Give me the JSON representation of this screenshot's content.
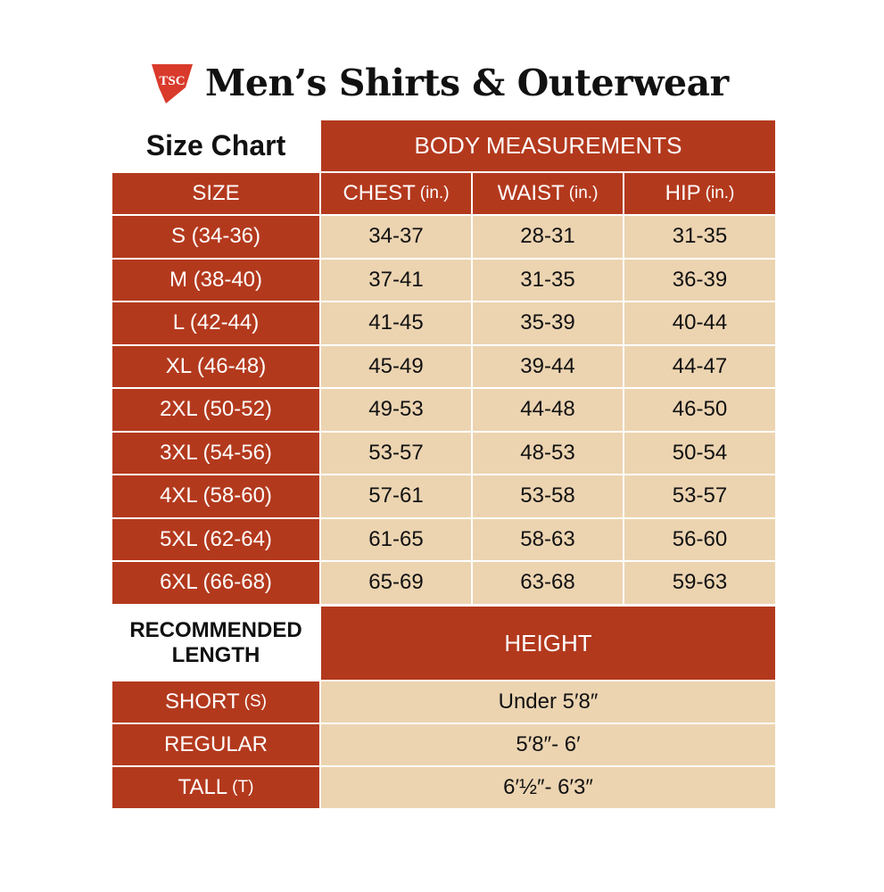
{
  "logo": {
    "text": "TSC",
    "color": "#d93a2b"
  },
  "title": "Men’s Shirts & Outerwear",
  "colors": {
    "header_red": "#b3391d",
    "cell_beige": "#ecd4b1"
  },
  "size_chart": {
    "label": "Size Chart",
    "group_header": "BODY MEASUREMENTS",
    "columns": [
      {
        "label": "SIZE",
        "unit": ""
      },
      {
        "label": "CHEST",
        "unit": "(in.)"
      },
      {
        "label": "WAIST",
        "unit": "(in.)"
      },
      {
        "label": "HIP",
        "unit": "(in.)"
      }
    ],
    "rows": [
      [
        "S (34-36)",
        "34-37",
        "28-31",
        "31-35"
      ],
      [
        "M (38-40)",
        "37-41",
        "31-35",
        "36-39"
      ],
      [
        "L (42-44)",
        "41-45",
        "35-39",
        "40-44"
      ],
      [
        "XL (46-48)",
        "45-49",
        "39-44",
        "44-47"
      ],
      [
        "2XL (50-52)",
        "49-53",
        "44-48",
        "46-50"
      ],
      [
        "3XL (54-56)",
        "53-57",
        "48-53",
        "50-54"
      ],
      [
        "4XL (58-60)",
        "57-61",
        "53-58",
        "53-57"
      ],
      [
        "5XL (62-64)",
        "61-65",
        "58-63",
        "56-60"
      ],
      [
        "6XL (66-68)",
        "65-69",
        "63-68",
        "59-63"
      ]
    ]
  },
  "length_chart": {
    "label_line1": "RECOMMENDED",
    "label_line2": "LENGTH",
    "header": "HEIGHT",
    "rows": [
      {
        "label": "SHORT",
        "code": "(S)",
        "height": "Under 5′8″"
      },
      {
        "label": "REGULAR",
        "code": "",
        "height": "5′8″- 6′"
      },
      {
        "label": "TALL",
        "code": "(T)",
        "height": "6′½″- 6′3″"
      }
    ]
  }
}
